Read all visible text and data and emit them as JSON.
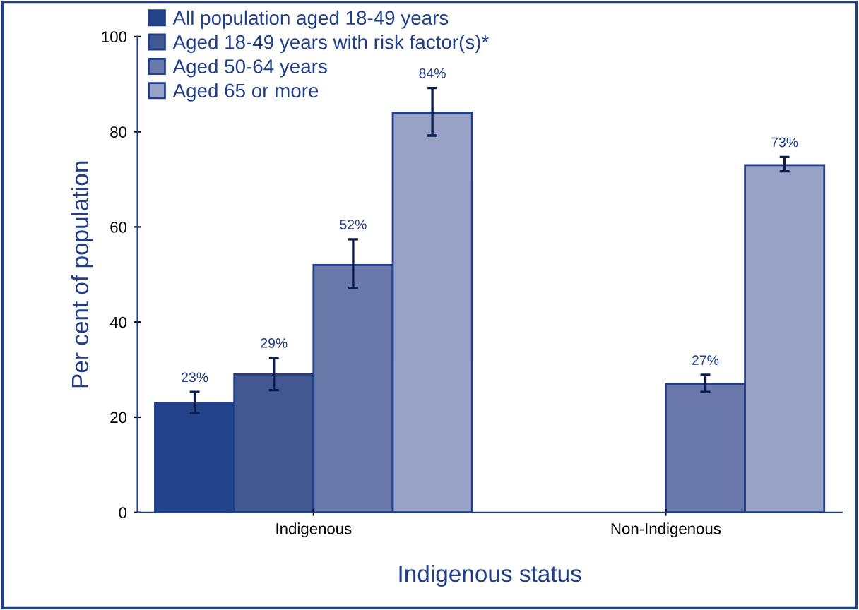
{
  "chart_data": {
    "type": "bar",
    "xlabel": "Indigenous status",
    "ylabel": "Per cent of population",
    "categories": [
      "Indigenous",
      "Non-Indigenous"
    ],
    "series": [
      {
        "name": "All population aged 18-49 years",
        "color": "#23438a",
        "values": [
          23,
          null
        ],
        "errors": [
          [
            20.9,
            25.3
          ],
          null
        ],
        "value_labels": [
          "23%",
          null
        ]
      },
      {
        "name": "Aged 18-49 years with risk factor(s)*",
        "color": "#435791",
        "values": [
          29,
          null
        ],
        "errors": [
          [
            25.7,
            32.5
          ],
          null
        ],
        "value_labels": [
          "29%",
          null
        ]
      },
      {
        "name": "Aged 50-64 years",
        "color": "#6a78aa",
        "values": [
          52,
          27
        ],
        "errors": [
          [
            47.2,
            57.4
          ],
          [
            25.3,
            28.9
          ]
        ],
        "value_labels": [
          "52%",
          "27%"
        ]
      },
      {
        "name": "Aged 65 or more",
        "color": "#98a1c6",
        "values": [
          84,
          73
        ],
        "errors": [
          [
            79.2,
            89.2
          ],
          [
            71.7,
            74.7
          ]
        ],
        "value_labels": [
          "84%",
          "73%"
        ]
      }
    ],
    "ylim": [
      0,
      100
    ],
    "yticks": [
      0,
      20,
      40,
      60,
      80,
      100
    ],
    "grid": false,
    "legend": "top left"
  }
}
